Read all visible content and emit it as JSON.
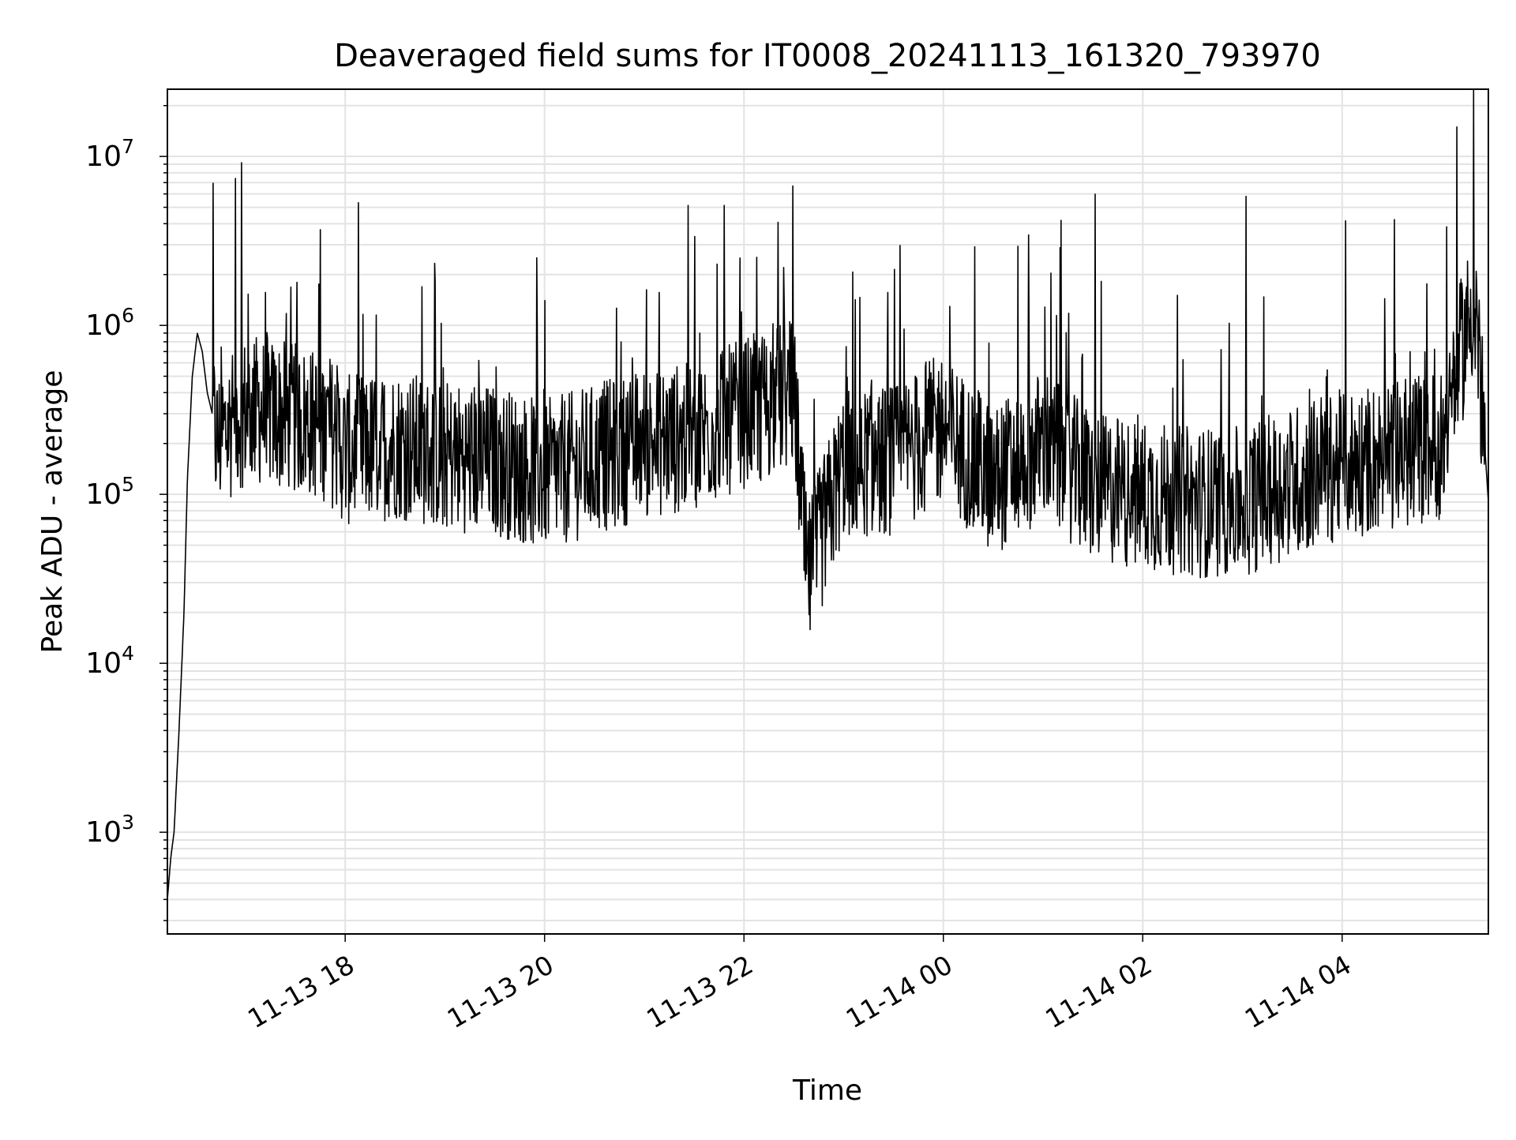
{
  "chart_data": {
    "type": "line",
    "title": "Deaveraged field sums for IT0008_20241113_161320_793970",
    "xlabel": "Time",
    "ylabel": "Peak ADU - average",
    "x_scale": "time",
    "y_scale": "log",
    "xlim": [
      "2024-11-13 16:13",
      "2024-11-14 05:28"
    ],
    "ylim": [
      250,
      25000000
    ],
    "grid": true,
    "x_ticks": [
      "11-13 18",
      "11-13 20",
      "11-13 22",
      "11-14 00",
      "11-14 02",
      "11-14 04"
    ],
    "y_tick_values": [
      1000,
      10000,
      100000,
      1000000,
      10000000
    ],
    "line_color": "#000000",
    "series": [
      {
        "x": [
          "2024-11-13 16:13",
          "2024-11-13 16:15",
          "2024-11-13 16:17",
          "2024-11-13 16:20",
          "2024-11-13 16:23",
          "2024-11-13 16:25",
          "2024-11-13 16:28",
          "2024-11-13 16:31",
          "2024-11-13 16:34",
          "2024-11-13 16:37",
          "2024-11-13 16:40",
          "2024-11-13 16:43",
          "2024-11-13 16:50",
          "2024-11-13 16:55",
          "2024-11-13 17:05",
          "2024-11-13 17:15",
          "2024-11-13 17:30",
          "2024-11-13 17:50",
          "2024-11-13 18:00",
          "2024-11-13 18:30",
          "2024-11-13 19:00",
          "2024-11-13 19:30",
          "2024-11-13 20:00",
          "2024-11-13 20:30",
          "2024-11-13 21:00",
          "2024-11-13 21:30",
          "2024-11-13 22:00",
          "2024-11-13 22:30",
          "2024-11-13 22:38",
          "2024-11-13 23:00",
          "2024-11-13 23:30",
          "2024-11-14 00:00",
          "2024-11-14 00:30",
          "2024-11-14 01:00",
          "2024-11-14 01:30",
          "2024-11-14 02:00",
          "2024-11-14 02:30",
          "2024-11-14 03:00",
          "2024-11-14 03:30",
          "2024-11-14 04:00",
          "2024-11-14 04:30",
          "2024-11-14 05:00",
          "2024-11-14 05:10",
          "2024-11-14 05:20",
          "2024-11-14 05:28"
        ],
        "y": [
          400,
          700,
          1000,
          4000,
          20000,
          120000,
          500000,
          900000,
          700000,
          400000,
          300000,
          200000,
          250000,
          300000,
          320000,
          300000,
          280000,
          250000,
          180000,
          200000,
          170000,
          160000,
          130000,
          160000,
          200000,
          220000,
          300000,
          400000,
          30000,
          150000,
          160000,
          250000,
          120000,
          200000,
          110000,
          100000,
          90000,
          90000,
          120000,
          150000,
          170000,
          200000,
          600000,
          1500000,
          90000
        ]
      }
    ]
  }
}
